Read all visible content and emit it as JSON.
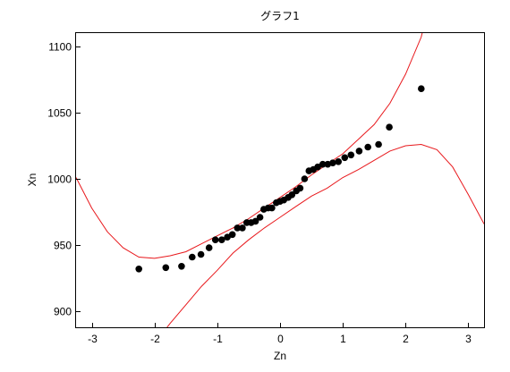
{
  "chart_data": {
    "type": "scatter",
    "title": "グラフ1",
    "xlabel": "Zn",
    "ylabel": "Xn",
    "xlim": [
      -3.25,
      3.25
    ],
    "ylim": [
      888,
      1110
    ],
    "x_ticks": [
      -3,
      -2,
      -1,
      0,
      1,
      2,
      3
    ],
    "x_tick_labels": [
      "-3",
      "-2",
      "-1",
      "0",
      "1",
      "2",
      "3"
    ],
    "y_ticks": [
      900,
      950,
      1000,
      1050,
      1100
    ],
    "y_tick_labels": [
      "900",
      "950",
      "1000",
      "1050",
      "1100"
    ],
    "grid": false,
    "legend": "none",
    "colors": {
      "points": "#000000",
      "bands": "#e8181c",
      "frame": "#000000"
    },
    "series": [
      {
        "values": [
          [
            -2.25,
            932
          ],
          [
            -1.82,
            933
          ],
          [
            -1.57,
            934
          ],
          [
            -1.4,
            941
          ],
          [
            -1.26,
            943
          ],
          [
            -1.13,
            948
          ],
          [
            -1.03,
            954
          ],
          [
            -0.93,
            954
          ],
          [
            -0.84,
            956
          ],
          [
            -0.76,
            958
          ],
          [
            -0.68,
            963
          ],
          [
            -0.6,
            963
          ],
          [
            -0.53,
            967
          ],
          [
            -0.46,
            967
          ],
          [
            -0.39,
            968
          ],
          [
            -0.32,
            971
          ],
          [
            -0.26,
            977
          ],
          [
            -0.19,
            978
          ],
          [
            -0.13,
            978
          ],
          [
            -0.06,
            982
          ],
          [
            0.0,
            983
          ],
          [
            0.06,
            984
          ],
          [
            0.13,
            986
          ],
          [
            0.19,
            988
          ],
          [
            0.26,
            991
          ],
          [
            0.32,
            993
          ],
          [
            0.39,
            1000
          ],
          [
            0.46,
            1006
          ],
          [
            0.53,
            1007
          ],
          [
            0.6,
            1009
          ],
          [
            0.68,
            1011
          ],
          [
            0.76,
            1011
          ],
          [
            0.84,
            1012
          ],
          [
            0.93,
            1013
          ],
          [
            1.03,
            1016
          ],
          [
            1.13,
            1018
          ],
          [
            1.26,
            1021
          ],
          [
            1.4,
            1024
          ],
          [
            1.57,
            1026
          ],
          [
            1.74,
            1039
          ],
          [
            2.25,
            1068
          ]
        ]
      }
    ],
    "bands": {
      "upper": [
        [
          -3.25,
          1001
        ],
        [
          -3.0,
          978
        ],
        [
          -2.75,
          960
        ],
        [
          -2.5,
          948
        ],
        [
          -2.25,
          941
        ],
        [
          -2.0,
          940
        ],
        [
          -1.75,
          942
        ],
        [
          -1.5,
          945
        ],
        [
          -1.25,
          951
        ],
        [
          -1.0,
          957
        ],
        [
          -0.75,
          963
        ],
        [
          -0.5,
          970
        ],
        [
          -0.25,
          978
        ],
        [
          0.0,
          986
        ],
        [
          0.25,
          994
        ],
        [
          0.5,
          1003
        ],
        [
          0.75,
          1011
        ],
        [
          1.0,
          1019
        ],
        [
          1.25,
          1030
        ],
        [
          1.5,
          1041
        ],
        [
          1.75,
          1057
        ],
        [
          2.0,
          1079
        ],
        [
          2.25,
          1107
        ],
        [
          2.27,
          1111
        ]
      ],
      "lower": [
        [
          -1.8,
          888
        ],
        [
          -1.75,
          891
        ],
        [
          -1.5,
          905
        ],
        [
          -1.25,
          919
        ],
        [
          -1.0,
          931
        ],
        [
          -0.75,
          944
        ],
        [
          -0.5,
          954
        ],
        [
          -0.25,
          963
        ],
        [
          0.0,
          971
        ],
        [
          0.25,
          979
        ],
        [
          0.5,
          987
        ],
        [
          0.75,
          993
        ],
        [
          1.0,
          1001
        ],
        [
          1.25,
          1007
        ],
        [
          1.5,
          1014
        ],
        [
          1.75,
          1021
        ],
        [
          2.0,
          1025
        ],
        [
          2.25,
          1026
        ],
        [
          2.5,
          1022
        ],
        [
          2.75,
          1009
        ],
        [
          3.0,
          988
        ],
        [
          3.25,
          966
        ]
      ]
    }
  }
}
